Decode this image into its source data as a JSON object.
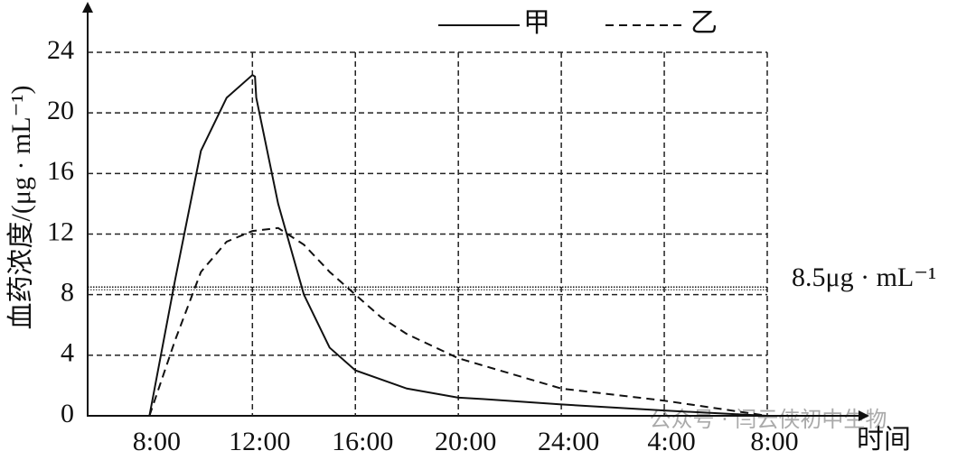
{
  "chart_data": {
    "type": "line",
    "y_label": "血药浓度/(μg · mL⁻¹)",
    "x_label": "时间",
    "xlim": [
      5.6,
      32
    ],
    "ylim": [
      0,
      24
    ],
    "xticks": [
      {
        "value": 8,
        "label": "8:00"
      },
      {
        "value": 12,
        "label": "12:00"
      },
      {
        "value": 16,
        "label": "16:00"
      },
      {
        "value": 20,
        "label": "20:00"
      },
      {
        "value": 24,
        "label": "24:00"
      },
      {
        "value": 28,
        "label": "4:00"
      },
      {
        "value": 32,
        "label": "8:00"
      }
    ],
    "yticks": [
      0,
      4,
      8,
      12,
      16,
      20,
      24
    ],
    "grid": true,
    "legend": "top-right",
    "reference_line": {
      "value": 8.5,
      "label": "8.5μg · mL⁻¹"
    },
    "series": [
      {
        "name": "甲",
        "color": "#111111",
        "dash": false,
        "x": [
          8,
          9,
          10,
          11,
          12,
          12.1,
          12.15,
          13,
          14,
          15,
          16,
          18,
          20,
          21,
          24,
          28,
          32
        ],
        "values": [
          0,
          9,
          17.5,
          21,
          22.5,
          22.4,
          21,
          14,
          8,
          4.5,
          3,
          1.8,
          1.2,
          1.1,
          0.75,
          0.35,
          0
        ]
      },
      {
        "name": "乙",
        "color": "#111111",
        "dash": true,
        "x": [
          8,
          9,
          10,
          11,
          12,
          13,
          14,
          15,
          16,
          17,
          18,
          20,
          22,
          24,
          28,
          32
        ],
        "values": [
          0,
          5,
          9.5,
          11.5,
          12.2,
          12.4,
          11.3,
          9.5,
          8,
          6.5,
          5.4,
          3.8,
          2.8,
          1.8,
          1,
          0
        ]
      }
    ],
    "watermark": "公众号 · 闫云侠初中生物"
  }
}
